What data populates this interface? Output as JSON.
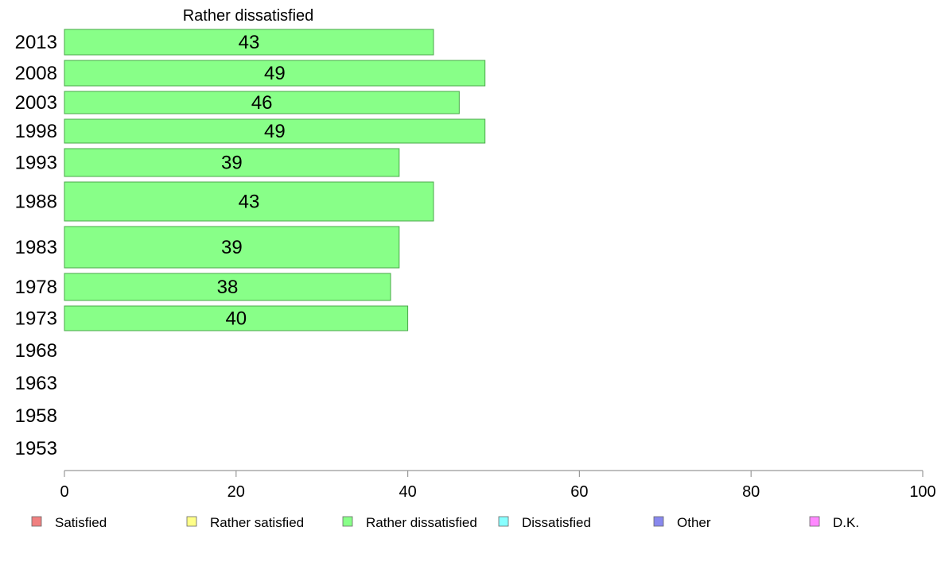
{
  "chart_data": {
    "type": "bar",
    "orientation": "horizontal",
    "title": "Rather dissatisfied",
    "categories": [
      "2013",
      "2008",
      "2003",
      "1998",
      "1993",
      "1988",
      "1983",
      "1978",
      "1973",
      "1968",
      "1963",
      "1958",
      "1953"
    ],
    "values": [
      43,
      49,
      46,
      49,
      39,
      43,
      39,
      38,
      40,
      null,
      null,
      null,
      null
    ],
    "value_labels": [
      "43",
      "49",
      "46",
      "49",
      "39",
      "43",
      "39",
      "38",
      "40",
      "",
      "",
      "",
      ""
    ],
    "xlim": [
      0,
      100
    ],
    "xticks": [
      0,
      20,
      40,
      60,
      80,
      100
    ],
    "xtick_labels": [
      "0",
      "20",
      "40",
      "60",
      "80",
      "100"
    ],
    "grid": false,
    "bar_color": "#88ff88",
    "bar_edge_color": "#4aa84a",
    "legend_placement": "bottom",
    "legend": [
      {
        "label": "Satisfied",
        "color": "#f08080"
      },
      {
        "label": "Rather satisfied",
        "color": "#ffff88"
      },
      {
        "label": "Rather dissatisfied",
        "color": "#88ff88"
      },
      {
        "label": "Dissatisfied",
        "color": "#88ffff"
      },
      {
        "label": "Other",
        "color": "#8888ee"
      },
      {
        "label": "D.K.",
        "color": "#ff88ff"
      }
    ]
  }
}
